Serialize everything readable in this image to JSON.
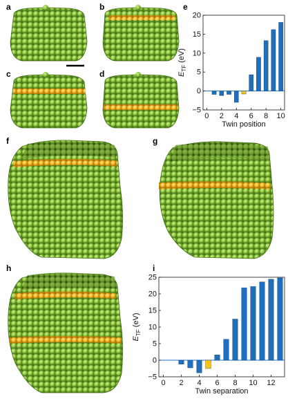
{
  "panel_labels": {
    "a": "a",
    "b": "b",
    "c": "c",
    "d": "d",
    "e": "e",
    "f": "f",
    "g": "g",
    "h": "h",
    "i": "i"
  },
  "colors": {
    "atom_green": "#8cc63f",
    "atom_green_dark": "#3f6b12",
    "twin_orange": "#f6b418",
    "bar_blue": "#1f6fbf",
    "bar_yellow": "#f5c518"
  },
  "chart_data": [
    {
      "panel": "e",
      "type": "bar",
      "x": [
        0,
        1,
        2,
        3,
        4,
        5,
        6,
        7,
        8,
        9,
        10
      ],
      "values": [
        0,
        -0.9,
        -1.2,
        -0.9,
        -3.0,
        -0.8,
        4.3,
        8.9,
        13.3,
        16.2,
        18.1
      ],
      "highlight_index": 5,
      "xticks": [
        "0",
        "2",
        "4",
        "6",
        "8",
        "10"
      ],
      "yticks": [
        "-5",
        "0",
        "5",
        "10",
        "15",
        "20"
      ],
      "xlabel": "Twin position",
      "ylabel_main": "E",
      "ylabel_sub": "TF",
      "ylabel_unit": "(eV)",
      "ylim": [
        -5,
        20
      ],
      "xlim": [
        -0.5,
        10.5
      ]
    },
    {
      "panel": "i",
      "type": "bar",
      "x": [
        0,
        1,
        2,
        3,
        4,
        5,
        6,
        7,
        8,
        9,
        10,
        11,
        12,
        13
      ],
      "values": [
        0,
        0,
        -1.2,
        -2.3,
        -3.8,
        -2.5,
        1.6,
        6.3,
        12.4,
        21.8,
        22.2,
        23.6,
        24.4,
        24.8
      ],
      "highlight_index": 5,
      "xticks": [
        "0",
        "2",
        "4",
        "6",
        "8",
        "10",
        "12"
      ],
      "yticks": [
        "-5",
        "0",
        "5",
        "10",
        "15",
        "20",
        "25"
      ],
      "xlabel": "Twin separation",
      "ylabel_main": "E",
      "ylabel_sub": "TF",
      "ylabel_unit": "(eV)",
      "ylim": [
        -5,
        25
      ],
      "xlim": [
        -0.5,
        13.5
      ]
    }
  ]
}
